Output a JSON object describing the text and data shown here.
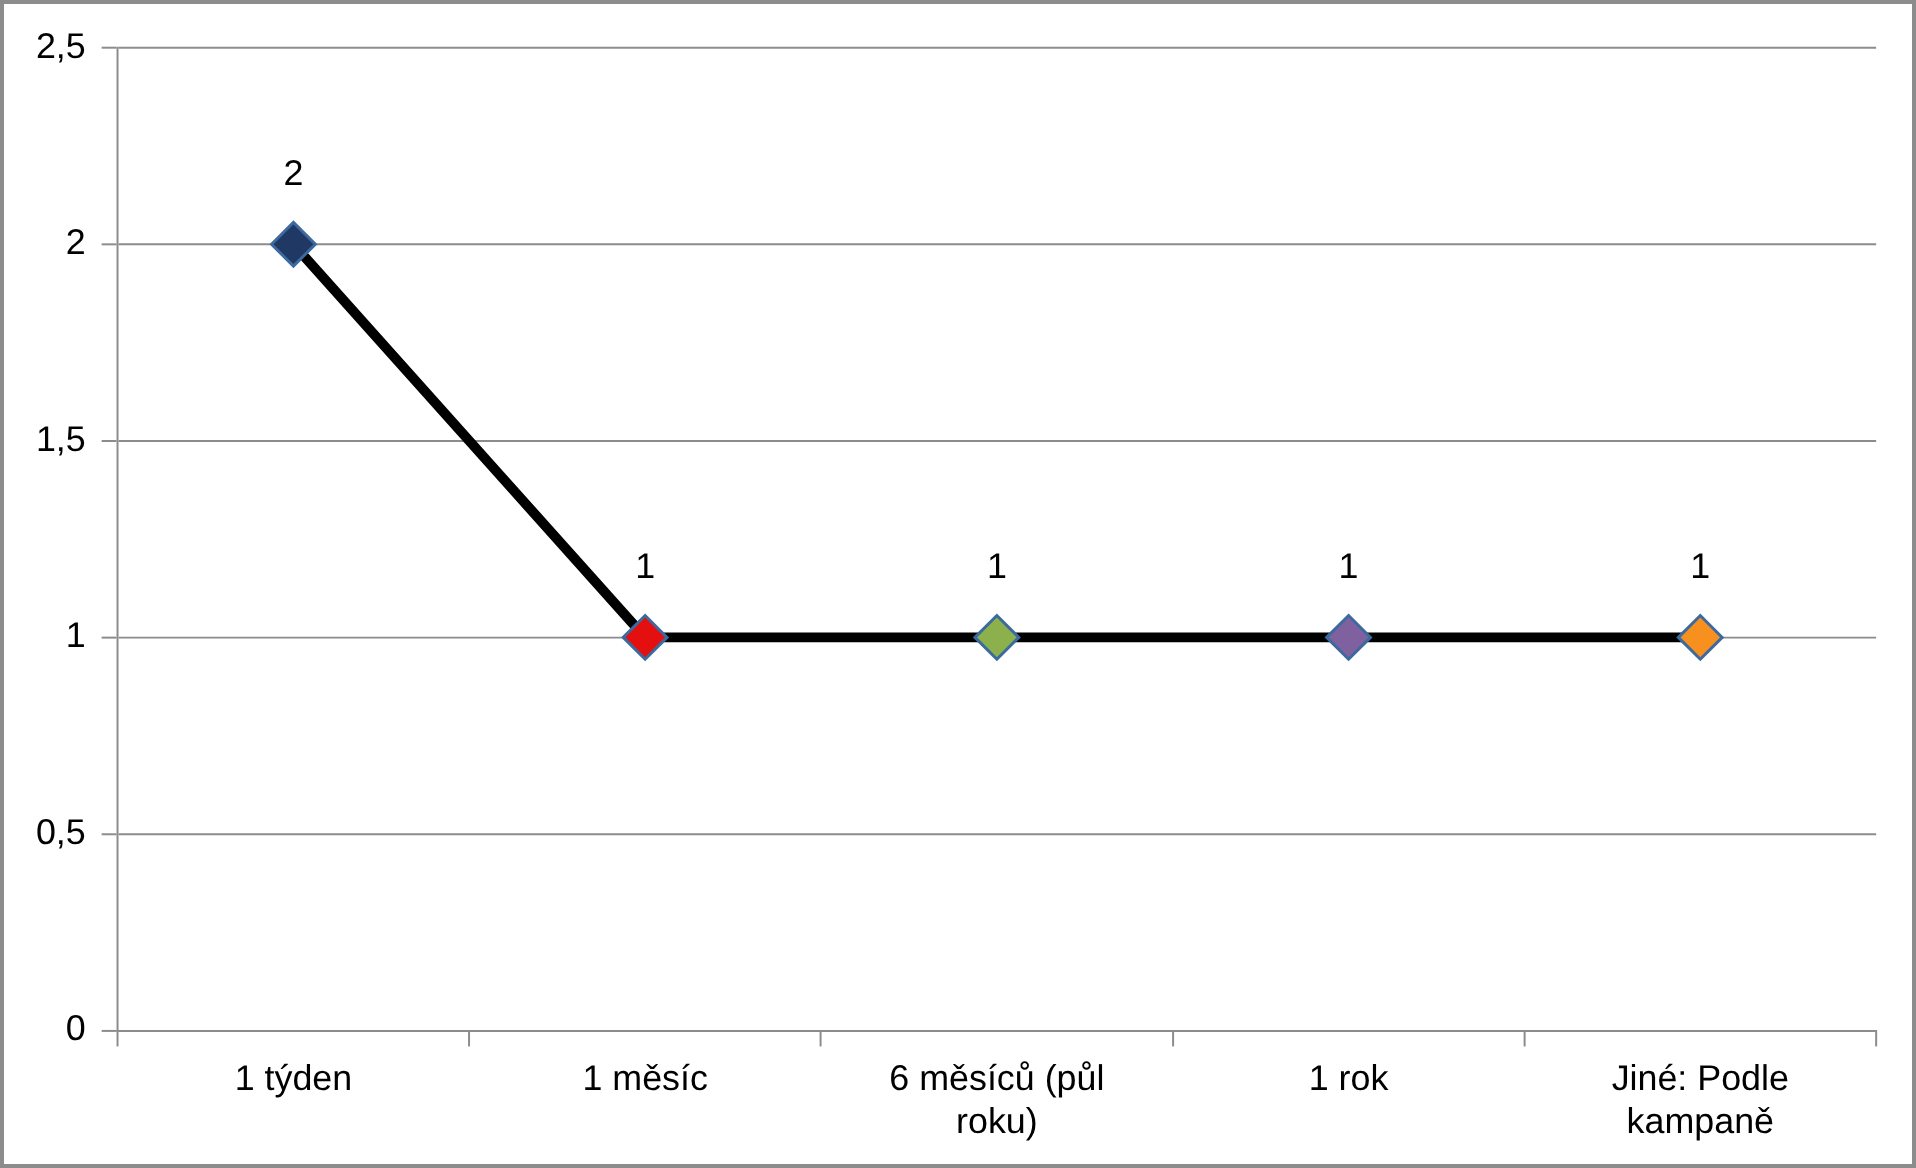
{
  "chart_data": {
    "type": "line",
    "categories": [
      "1 týden",
      "1 měsíc",
      "6 měsíců (půl roku)",
      "1 rok",
      "Jiné: Podle kampaně"
    ],
    "series": [
      {
        "color": "#000000",
        "colors": [
          "#1f3864",
          "#e41010",
          "#8cb04c",
          "#7f619f",
          "#f7901e"
        ],
        "values": [
          2,
          1,
          1,
          1,
          1
        ]
      }
    ],
    "ylim": [
      0,
      2.5
    ],
    "yticks": [
      0,
      {
        "value": 0.5,
        "label": "0,5"
      },
      1,
      {
        "value": 1.5,
        "label": "1,5"
      },
      2,
      {
        "value": 2.5,
        "label": "2,5"
      }
    ],
    "grid": "y",
    "legend": false,
    "marker": "diamond",
    "data_labels": true
  }
}
